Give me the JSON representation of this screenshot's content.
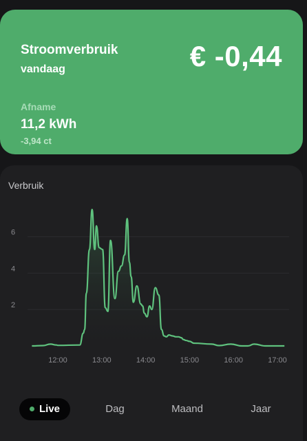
{
  "summary": {
    "title": "Stroomverbruik",
    "subtitle": "vandaag",
    "amount": "€ -0,44",
    "afname_label": "Afname",
    "afname_value": "11,2 kWh",
    "afname_cost": "-3,94 ct",
    "accent_color": "#4fac6b"
  },
  "chart_title": "Verbruik",
  "chart_data": {
    "type": "area",
    "title": "Verbruik",
    "xlabel": "",
    "ylabel": "",
    "xticks": [
      "12:00",
      "13:00",
      "14:00",
      "15:00",
      "16:00",
      "17:00"
    ],
    "yticks": [
      "2",
      "4",
      "6"
    ],
    "ylim": [
      0,
      8
    ],
    "grid": true,
    "line_color": "#5fc27e",
    "series": [
      {
        "x": [
          11.41,
          11.67,
          11.83,
          11.97,
          12.0,
          12.5,
          12.58,
          12.61,
          12.65,
          12.72,
          12.78,
          12.84,
          12.88,
          12.94,
          13.02,
          13.08,
          13.14,
          13.2,
          13.3,
          13.38,
          13.45,
          13.52,
          13.58,
          13.63,
          13.67,
          13.72,
          13.8,
          13.89,
          13.93,
          13.97,
          14.03,
          14.09,
          14.14,
          14.22,
          14.3,
          14.36,
          14.42,
          14.47,
          14.53,
          14.61,
          14.69,
          14.75,
          14.81,
          14.86,
          14.92,
          15.0,
          15.1,
          15.5,
          15.67,
          15.94,
          16.19,
          16.33,
          16.47,
          16.73,
          16.91,
          17.03,
          17.16
        ],
        "y": [
          0.0,
          0.02,
          0.1,
          0.05,
          0.03,
          0.05,
          0.7,
          0.9,
          2.9,
          5.3,
          7.5,
          5.3,
          6.6,
          5.4,
          5.3,
          2.1,
          1.9,
          5.8,
          2.6,
          4.1,
          4.4,
          5.0,
          7.0,
          4.6,
          3.8,
          2.4,
          3.3,
          2.3,
          2.2,
          1.8,
          1.6,
          2.2,
          2.0,
          3.2,
          2.8,
          0.9,
          0.55,
          0.5,
          0.6,
          0.55,
          0.5,
          0.5,
          0.45,
          0.35,
          0.3,
          0.25,
          0.15,
          0.1,
          0.02,
          0.1,
          0.0,
          0.0,
          0.1,
          0.0,
          0.0,
          0.0,
          0.0
        ]
      }
    ]
  },
  "tabs": [
    {
      "label": "Live",
      "active": true
    },
    {
      "label": "Dag",
      "active": false
    },
    {
      "label": "Maand",
      "active": false
    },
    {
      "label": "Jaar",
      "active": false
    }
  ]
}
